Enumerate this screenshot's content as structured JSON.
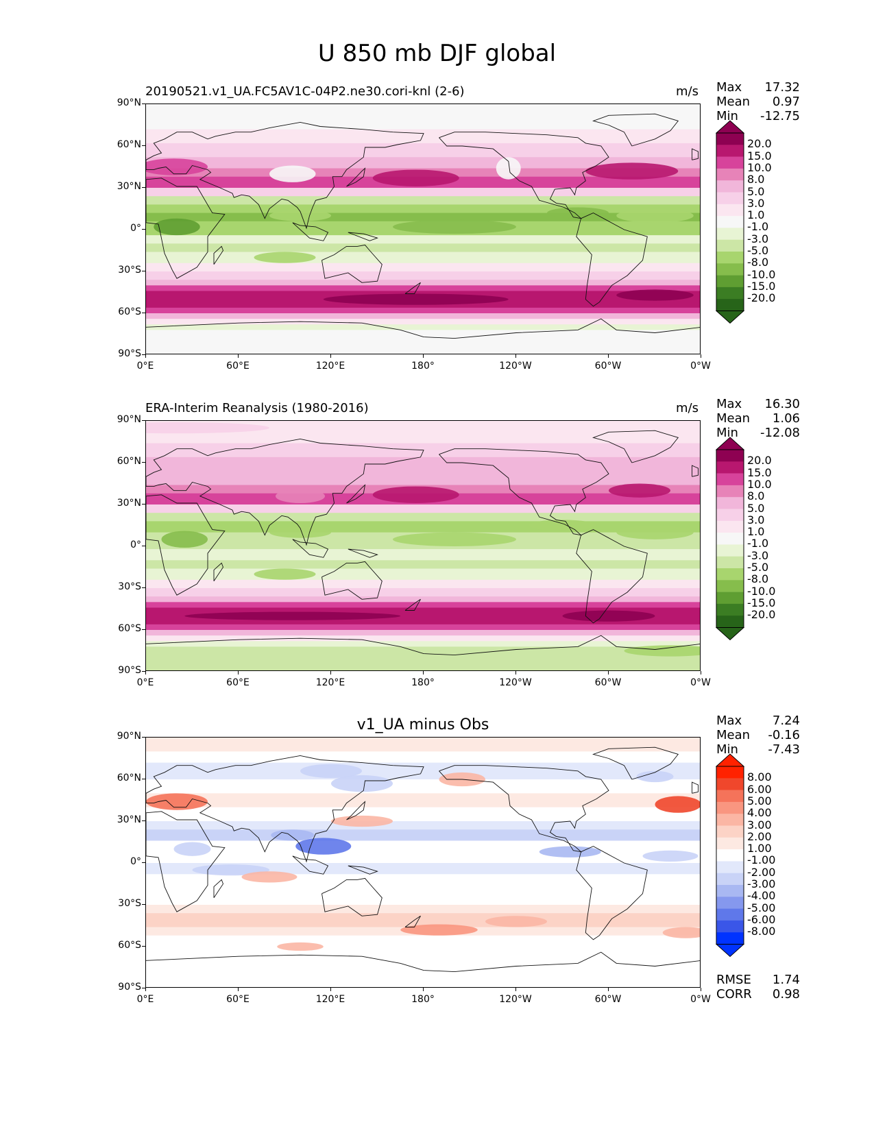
{
  "title": "U 850 mb DJF global",
  "lat_ticks": [
    "90°N",
    "60°N",
    "30°N",
    "0°",
    "30°S",
    "60°S",
    "90°S"
  ],
  "lon_ticks": [
    "0°E",
    "60°E",
    "120°E",
    "180°",
    "120°W",
    "60°W",
    "0°W"
  ],
  "panels": [
    {
      "title": "20190521.v1_UA.FC5AV1C-04P2.ne30.cori-knl (2-6)",
      "units": "m/s",
      "stats": {
        "max_label": "Max",
        "max": "17.32",
        "mean_label": "Mean",
        "mean": "0.97",
        "min_label": "Min",
        "min": "-12.75"
      },
      "colorbar_levels": [
        "20.0",
        "15.0",
        "10.0",
        "8.0",
        "5.0",
        "3.0",
        "1.0",
        "-1.0",
        "-3.0",
        "-5.0",
        "-8.0",
        "-10.0",
        "-15.0",
        "-20.0"
      ]
    },
    {
      "title": "ERA-Interim Reanalysis (1980-2016)",
      "units": "m/s",
      "stats": {
        "max_label": "Max",
        "max": "16.30",
        "mean_label": "Mean",
        "mean": "1.06",
        "min_label": "Min",
        "min": "-12.08"
      },
      "colorbar_levels": [
        "20.0",
        "15.0",
        "10.0",
        "8.0",
        "5.0",
        "3.0",
        "1.0",
        "-1.0",
        "-3.0",
        "-5.0",
        "-8.0",
        "-10.0",
        "-15.0",
        "-20.0"
      ]
    },
    {
      "title": "v1_UA minus Obs",
      "units": "",
      "stats": {
        "max_label": "Max",
        "max": "7.24",
        "mean_label": "Mean",
        "mean": "-0.16",
        "min_label": "Min",
        "min": "-7.43"
      },
      "colorbar_levels": [
        "8.00",
        "6.00",
        "5.00",
        "4.00",
        "3.00",
        "2.00",
        "1.00",
        "-1.00",
        "-2.00",
        "-3.00",
        "-4.00",
        "-5.00",
        "-6.00",
        "-8.00"
      ],
      "rmse_label": "RMSE",
      "rmse": "1.74",
      "corr_label": "CORR",
      "corr": "0.98"
    }
  ],
  "colors": {
    "piyg": [
      "#8e0152",
      "#b8176f",
      "#d7439b",
      "#e783b8",
      "#f1b6da",
      "#f7d0e8",
      "#fbe6f0",
      "#f7f7f7",
      "#e8f4d4",
      "#cce6a6",
      "#a8d56e",
      "#86bd4c",
      "#5f9e32",
      "#3b7d23",
      "#276419"
    ],
    "bwr": [
      "#ff2200",
      "#f0472c",
      "#f5735a",
      "#f99680",
      "#fbb6a4",
      "#fcd3c6",
      "#fde9e2",
      "#ffffff",
      "#e2e8fb",
      "#c9d3f7",
      "#a9b8f2",
      "#8598ee",
      "#5f78ea",
      "#3a56e8",
      "#0033ff"
    ]
  },
  "chart_data": [
    {
      "type": "heatmap",
      "title": "20190521.v1_UA.FC5AV1C-04P2.ne30.cori-knl (2-6)",
      "variable": "U 850 mb DJF",
      "units": "m/s",
      "lon_range": [
        0,
        360
      ],
      "lat_range": [
        -90,
        90
      ],
      "levels": [
        -20,
        -15,
        -10,
        -8,
        -5,
        -3,
        -1,
        1,
        3,
        5,
        8,
        10,
        15,
        20
      ],
      "zonal_profile": [
        {
          "lat": 80,
          "u": 1
        },
        {
          "lat": 60,
          "u": 3
        },
        {
          "lat": 45,
          "u": 8
        },
        {
          "lat": 35,
          "u": 12
        },
        {
          "lat": 20,
          "u": -3
        },
        {
          "lat": 10,
          "u": -8
        },
        {
          "lat": 0,
          "u": -5
        },
        {
          "lat": -15,
          "u": -3
        },
        {
          "lat": -30,
          "u": 3
        },
        {
          "lat": -50,
          "u": 14
        },
        {
          "lat": -65,
          "u": 2
        },
        {
          "lat": -75,
          "u": -3
        }
      ],
      "max": 17.32,
      "mean": 0.97,
      "min": -12.75
    },
    {
      "type": "heatmap",
      "title": "ERA-Interim Reanalysis (1980-2016)",
      "variable": "U 850 mb DJF",
      "units": "m/s",
      "lon_range": [
        0,
        360
      ],
      "lat_range": [
        -90,
        90
      ],
      "levels": [
        -20,
        -15,
        -10,
        -8,
        -5,
        -3,
        -1,
        1,
        3,
        5,
        8,
        10,
        15,
        20
      ],
      "zonal_profile": [
        {
          "lat": 80,
          "u": 1
        },
        {
          "lat": 60,
          "u": 4
        },
        {
          "lat": 45,
          "u": 7
        },
        {
          "lat": 35,
          "u": 11
        },
        {
          "lat": 20,
          "u": -3
        },
        {
          "lat": 10,
          "u": -7
        },
        {
          "lat": 0,
          "u": -4
        },
        {
          "lat": -15,
          "u": -3
        },
        {
          "lat": -30,
          "u": 2
        },
        {
          "lat": -50,
          "u": 13
        },
        {
          "lat": -65,
          "u": 2
        },
        {
          "lat": -75,
          "u": -4
        }
      ],
      "max": 16.3,
      "mean": 1.06,
      "min": -12.08
    },
    {
      "type": "heatmap",
      "title": "v1_UA minus Obs",
      "variable": "U 850 mb DJF difference",
      "lon_range": [
        0,
        360
      ],
      "lat_range": [
        -90,
        90
      ],
      "levels": [
        -8,
        -6,
        -5,
        -4,
        -3,
        -2,
        -1,
        1,
        2,
        3,
        4,
        5,
        6,
        8
      ],
      "zonal_profile": [
        {
          "lat": 80,
          "u": 0.5
        },
        {
          "lat": 60,
          "u": -1.5
        },
        {
          "lat": 45,
          "u": 1.5
        },
        {
          "lat": 20,
          "u": -1.5
        },
        {
          "lat": 0,
          "u": 0
        },
        {
          "lat": -10,
          "u": -1.5
        },
        {
          "lat": -40,
          "u": 1.5
        },
        {
          "lat": -60,
          "u": 1
        },
        {
          "lat": -75,
          "u": 0
        }
      ],
      "max": 7.24,
      "mean": -0.16,
      "min": -7.43,
      "rmse": 1.74,
      "corr": 0.98
    }
  ]
}
